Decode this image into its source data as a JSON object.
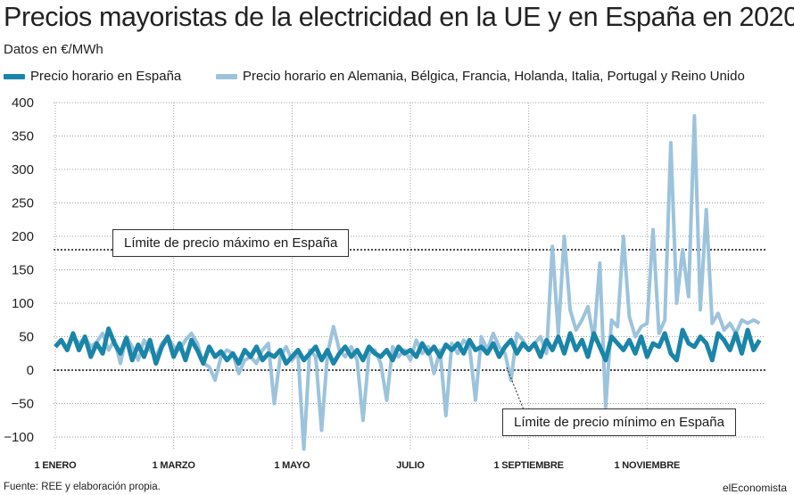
{
  "title": "Precios mayoristas de la electricidad en la UE y en España en 2020",
  "subtitle": "Datos en €/MWh",
  "legend": {
    "spain": "Precio horario en España",
    "europe": "Precio horario en Alemania, Bélgica, Francia, Holanda, Italia, Portugal y Reino Unido"
  },
  "annotations": {
    "max": "Límite de precio máximo en España",
    "min": "Límite de precio mínimo en España"
  },
  "source": "Fuente: REE y elaboración propia.",
  "brand": "elEconomista",
  "colors": {
    "spain": "#1a85a8",
    "europe": "#9dc3dc",
    "grid": "#9a9a9a"
  },
  "chart_data": {
    "type": "line",
    "title": "Precios mayoristas de la electricidad en la UE y en España en 2020",
    "ylabel": "Datos en €/MWh",
    "ylim": [
      -120,
      400
    ],
    "yticks": [
      400,
      350,
      300,
      250,
      200,
      150,
      100,
      50,
      0,
      -50,
      -100
    ],
    "yticklabels": [
      "400",
      "350",
      "300",
      "250",
      "200",
      "150",
      "100",
      "50",
      "0",
      "−50",
      "−100"
    ],
    "xlim": [
      0,
      12
    ],
    "xticks": [
      0,
      2,
      4,
      6,
      8,
      10
    ],
    "xticklabels": [
      "1 ENERO",
      "1 MARZO",
      "1 MAYO",
      "JULIO",
      "1 SEPTIEMBRE",
      "1 NOVIEMBRE"
    ],
    "reference_lines": [
      {
        "y": 180,
        "style": "dotted"
      },
      {
        "y": 0,
        "style": "dotted"
      }
    ],
    "series": [
      {
        "name": "Precio horario en Alemania, Bélgica, Francia, Holanda, Italia, Portugal y Reino Unido",
        "x": [
          0.0,
          0.1,
          0.2,
          0.3,
          0.4,
          0.5,
          0.6,
          0.7,
          0.8,
          0.9,
          1.0,
          1.1,
          1.2,
          1.3,
          1.4,
          1.5,
          1.6,
          1.7,
          1.8,
          1.9,
          2.0,
          2.1,
          2.2,
          2.3,
          2.4,
          2.5,
          2.6,
          2.7,
          2.8,
          2.9,
          3.0,
          3.1,
          3.2,
          3.3,
          3.4,
          3.5,
          3.6,
          3.7,
          3.8,
          3.9,
          4.0,
          4.1,
          4.2,
          4.3,
          4.4,
          4.5,
          4.6,
          4.7,
          4.8,
          4.9,
          5.0,
          5.1,
          5.2,
          5.3,
          5.4,
          5.5,
          5.6,
          5.7,
          5.8,
          5.9,
          6.0,
          6.1,
          6.2,
          6.3,
          6.4,
          6.5,
          6.6,
          6.7,
          6.8,
          6.9,
          7.0,
          7.1,
          7.2,
          7.3,
          7.4,
          7.5,
          7.6,
          7.7,
          7.8,
          7.9,
          8.0,
          8.1,
          8.2,
          8.3,
          8.4,
          8.5,
          8.6,
          8.7,
          8.8,
          8.9,
          9.0,
          9.1,
          9.2,
          9.3,
          9.4,
          9.5,
          9.6,
          9.7,
          9.8,
          9.9,
          10.0,
          10.1,
          10.2,
          10.3,
          10.4,
          10.5,
          10.6,
          10.7,
          10.8,
          10.9,
          11.0,
          11.1,
          11.2,
          11.3,
          11.4,
          11.5,
          11.6,
          11.7,
          11.8,
          11.9
        ],
        "values": [
          35,
          45,
          30,
          50,
          40,
          48,
          35,
          42,
          55,
          30,
          45,
          10,
          50,
          35,
          15,
          45,
          30,
          20,
          40,
          50,
          35,
          30,
          45,
          55,
          40,
          10,
          5,
          -15,
          20,
          30,
          25,
          -5,
          15,
          20,
          10,
          30,
          40,
          -50,
          20,
          35,
          15,
          25,
          -118,
          30,
          20,
          -90,
          25,
          65,
          30,
          20,
          35,
          15,
          -75,
          25,
          30,
          10,
          -45,
          35,
          20,
          30,
          15,
          45,
          25,
          35,
          -5,
          30,
          -68,
          40,
          25,
          45,
          35,
          -45,
          50,
          30,
          55,
          35,
          25,
          -15,
          55,
          45,
          30,
          40,
          50,
          25,
          185,
          55,
          200,
          90,
          60,
          75,
          95,
          45,
          160,
          -55,
          75,
          65,
          200,
          80,
          50,
          65,
          70,
          210,
          55,
          75,
          340,
          100,
          180,
          110,
          380,
          90,
          240,
          70,
          85,
          60,
          70,
          55,
          75,
          70,
          75,
          70
        ]
      },
      {
        "name": "Precio horario en España",
        "x": [
          0.0,
          0.1,
          0.2,
          0.3,
          0.4,
          0.5,
          0.6,
          0.7,
          0.8,
          0.9,
          1.0,
          1.1,
          1.2,
          1.3,
          1.4,
          1.5,
          1.6,
          1.7,
          1.8,
          1.9,
          2.0,
          2.1,
          2.2,
          2.3,
          2.4,
          2.5,
          2.6,
          2.7,
          2.8,
          2.9,
          3.0,
          3.1,
          3.2,
          3.3,
          3.4,
          3.5,
          3.6,
          3.7,
          3.8,
          3.9,
          4.0,
          4.1,
          4.2,
          4.3,
          4.4,
          4.5,
          4.6,
          4.7,
          4.8,
          4.9,
          5.0,
          5.1,
          5.2,
          5.3,
          5.4,
          5.5,
          5.6,
          5.7,
          5.8,
          5.9,
          6.0,
          6.1,
          6.2,
          6.3,
          6.4,
          6.5,
          6.6,
          6.7,
          6.8,
          6.9,
          7.0,
          7.1,
          7.2,
          7.3,
          7.4,
          7.5,
          7.6,
          7.7,
          7.8,
          7.9,
          8.0,
          8.1,
          8.2,
          8.3,
          8.4,
          8.5,
          8.6,
          8.7,
          8.8,
          8.9,
          9.0,
          9.1,
          9.2,
          9.3,
          9.4,
          9.5,
          9.6,
          9.7,
          9.8,
          9.9,
          10.0,
          10.1,
          10.2,
          10.3,
          10.4,
          10.5,
          10.6,
          10.7,
          10.8,
          10.9,
          11.0,
          11.1,
          11.2,
          11.3,
          11.4,
          11.5,
          11.6,
          11.7,
          11.8,
          11.9
        ],
        "values": [
          35,
          45,
          30,
          55,
          30,
          50,
          20,
          40,
          25,
          62,
          40,
          25,
          48,
          15,
          38,
          20,
          45,
          10,
          35,
          50,
          20,
          40,
          15,
          45,
          30,
          10,
          35,
          20,
          28,
          15,
          25,
          10,
          30,
          20,
          35,
          15,
          25,
          20,
          30,
          10,
          20,
          30,
          15,
          25,
          35,
          15,
          30,
          10,
          25,
          35,
          20,
          30,
          15,
          35,
          25,
          20,
          30,
          15,
          35,
          25,
          30,
          20,
          40,
          25,
          35,
          20,
          38,
          30,
          40,
          25,
          45,
          30,
          35,
          25,
          40,
          20,
          35,
          45,
          25,
          40,
          30,
          40,
          20,
          45,
          30,
          50,
          25,
          55,
          30,
          45,
          20,
          55,
          35,
          15,
          50,
          40,
          30,
          45,
          25,
          50,
          20,
          40,
          35,
          55,
          25,
          15,
          60,
          40,
          35,
          50,
          40,
          15,
          55,
          45,
          30,
          55,
          25,
          60,
          30,
          45
        ]
      }
    ]
  }
}
